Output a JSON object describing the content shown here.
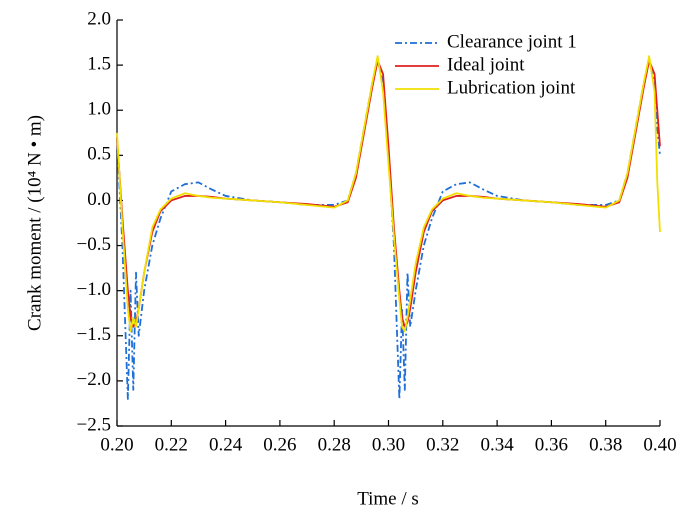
{
  "chart_data": {
    "type": "line",
    "xlabel": "Time / s",
    "ylabel": "Crank moment / (10⁴ N • m)",
    "xlim": [
      0.2,
      0.4
    ],
    "ylim": [
      -2.5,
      2.0
    ],
    "xticks": [
      {
        "value": 0.2,
        "label": "0.20"
      },
      0.22,
      0.24,
      0.26,
      0.28,
      {
        "value": 0.3,
        "label": "0.30"
      },
      0.32,
      0.34,
      0.36,
      0.38,
      {
        "value": 0.4,
        "label": "0.40"
      }
    ],
    "yticks": [
      {
        "value": -2.5,
        "label": "−2.5"
      },
      {
        "value": -2.0,
        "label": "−2.0"
      },
      {
        "value": -1.5,
        "label": "−1.5"
      },
      {
        "value": -1.0,
        "label": "−1.0"
      },
      {
        "value": -0.5,
        "label": "−0.5"
      },
      {
        "value": 0,
        "label": "0.0"
      },
      0.5,
      {
        "value": 1.0,
        "label": "1.0"
      },
      1.5,
      {
        "value": 2.0,
        "label": "2.0"
      }
    ],
    "legend": "upper right",
    "x": [
      0.2,
      0.202,
      0.204,
      0.205,
      0.206,
      0.207,
      0.208,
      0.21,
      0.213,
      0.216,
      0.22,
      0.225,
      0.23,
      0.235,
      0.24,
      0.25,
      0.26,
      0.27,
      0.28,
      0.285,
      0.288,
      0.291,
      0.294,
      0.296,
      0.298,
      0.3,
      0.302,
      0.304,
      0.305,
      0.306,
      0.307,
      0.308,
      0.31,
      0.313,
      0.316,
      0.32,
      0.325,
      0.33,
      0.335,
      0.34,
      0.35,
      0.36,
      0.37,
      0.38,
      0.385,
      0.388,
      0.391,
      0.394,
      0.396,
      0.398,
      0.399,
      0.4
    ],
    "series": [
      {
        "name": "Clearance joint 1",
        "color": "#1f6fd6",
        "dash": "dashdot",
        "values": [
          0.7,
          -0.5,
          -2.2,
          -1.0,
          -2.1,
          -0.8,
          -1.5,
          -1.0,
          -0.5,
          -0.2,
          0.1,
          0.18,
          0.2,
          0.12,
          0.05,
          0.0,
          -0.02,
          -0.05,
          -0.05,
          0.0,
          0.3,
          0.8,
          1.3,
          1.55,
          1.3,
          0.5,
          -0.5,
          -2.2,
          -1.2,
          -2.1,
          -0.8,
          -1.4,
          -1.0,
          -0.5,
          -0.2,
          0.1,
          0.18,
          0.2,
          0.12,
          0.05,
          0.0,
          -0.02,
          -0.05,
          -0.05,
          0.0,
          0.3,
          0.8,
          1.3,
          1.55,
          1.3,
          0.8,
          0.5
        ]
      },
      {
        "name": "Ideal joint",
        "color": "#e02020",
        "dash": "solid",
        "values": [
          0.7,
          -0.2,
          -1.0,
          -1.3,
          -1.4,
          -1.35,
          -1.2,
          -0.8,
          -0.35,
          -0.12,
          0.0,
          0.05,
          0.05,
          0.04,
          0.02,
          0.0,
          -0.02,
          -0.04,
          -0.07,
          -0.02,
          0.25,
          0.75,
          1.25,
          1.55,
          1.4,
          0.6,
          -0.3,
          -1.0,
          -1.3,
          -1.4,
          -1.35,
          -1.2,
          -0.8,
          -0.35,
          -0.12,
          0.0,
          0.05,
          0.05,
          0.04,
          0.02,
          0.0,
          -0.02,
          -0.04,
          -0.07,
          -0.02,
          0.25,
          0.75,
          1.25,
          1.55,
          1.4,
          1.0,
          0.6
        ]
      },
      {
        "name": "Lubrication joint",
        "color": "#f0e000",
        "dash": "solid",
        "values": [
          0.75,
          -0.3,
          -1.2,
          -1.45,
          -1.3,
          -1.4,
          -1.2,
          -0.8,
          -0.3,
          -0.1,
          0.02,
          0.08,
          0.05,
          0.03,
          0.02,
          0.0,
          -0.02,
          -0.05,
          -0.08,
          0.0,
          0.3,
          0.8,
          1.3,
          1.6,
          1.2,
          0.4,
          -0.4,
          -1.1,
          -1.4,
          -1.45,
          -1.3,
          -1.1,
          -0.7,
          -0.3,
          -0.1,
          0.02,
          0.08,
          0.05,
          0.03,
          0.02,
          0.0,
          -0.02,
          -0.05,
          -0.08,
          0.0,
          0.3,
          0.8,
          1.3,
          1.6,
          1.2,
          0.2,
          -0.35
        ]
      }
    ]
  }
}
